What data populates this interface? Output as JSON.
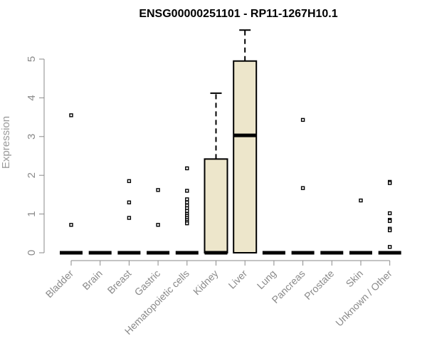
{
  "chart_data": {
    "type": "box",
    "title": "ENSG00000251101 - RP11-1267H10.1",
    "xlabel": "",
    "ylabel": "Expression",
    "ylim": [
      0,
      5.8
    ],
    "yticks": [
      "0",
      "1",
      "2",
      "3",
      "4",
      "5"
    ],
    "grid": false,
    "box_fill": "#ede6cb",
    "line_color": "#000000",
    "categories": [
      "Bladder",
      "Brain",
      "Breast",
      "Gastric",
      "Hematopoietic cells",
      "Kidney",
      "Liver",
      "Lung",
      "Pancreas",
      "Prostate",
      "Skin",
      "Unknown / Other"
    ],
    "boxes": [
      {
        "q1": 0,
        "median": 0,
        "q3": 0,
        "whisker_low": 0,
        "whisker_high": 0,
        "outliers": [
          3.55,
          0.72
        ]
      },
      {
        "q1": 0,
        "median": 0,
        "q3": 0,
        "whisker_low": 0,
        "whisker_high": 0,
        "outliers": []
      },
      {
        "q1": 0,
        "median": 0,
        "q3": 0,
        "whisker_low": 0,
        "whisker_high": 0,
        "outliers": [
          1.85,
          1.3,
          0.9
        ]
      },
      {
        "q1": 0,
        "median": 0,
        "q3": 0,
        "whisker_low": 0,
        "whisker_high": 0,
        "outliers": [
          1.62,
          0.72
        ]
      },
      {
        "q1": 0,
        "median": 0,
        "q3": 0,
        "whisker_low": 0,
        "whisker_high": 0,
        "outliers": [
          2.18,
          1.6,
          1.38,
          1.3,
          1.22,
          1.15,
          1.08,
          1.0,
          0.95,
          0.9,
          0.85,
          0.8,
          0.76
        ]
      },
      {
        "q1": 0,
        "median": 0,
        "q3": 2.42,
        "whisker_low": 0,
        "whisker_high": 4.12,
        "outliers": []
      },
      {
        "q1": 0,
        "median": 3.03,
        "q3": 4.95,
        "whisker_low": 0,
        "whisker_high": 5.75,
        "outliers": []
      },
      {
        "q1": 0,
        "median": 0,
        "q3": 0,
        "whisker_low": 0,
        "whisker_high": 0,
        "outliers": []
      },
      {
        "q1": 0,
        "median": 0,
        "q3": 0,
        "whisker_low": 0,
        "whisker_high": 0,
        "outliers": [
          3.43,
          1.67
        ]
      },
      {
        "q1": 0,
        "median": 0,
        "q3": 0,
        "whisker_low": 0,
        "whisker_high": 0,
        "outliers": []
      },
      {
        "q1": 0,
        "median": 0,
        "q3": 0,
        "whisker_low": 0,
        "whisker_high": 0,
        "outliers": [
          1.35
        ]
      },
      {
        "q1": 0,
        "median": 0,
        "q3": 0,
        "whisker_low": 0,
        "whisker_high": 0,
        "outliers": [
          1.83,
          1.8,
          1.02,
          0.85,
          0.82,
          0.62,
          0.58,
          0.15
        ]
      }
    ]
  }
}
